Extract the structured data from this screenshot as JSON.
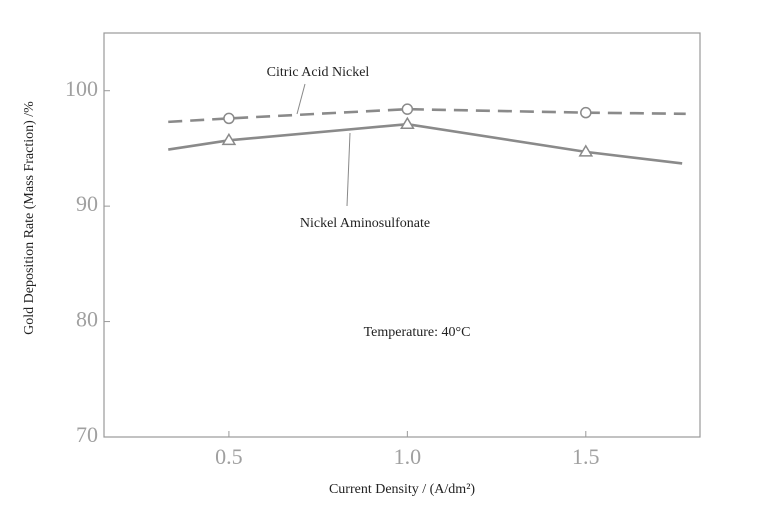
{
  "chart_data": {
    "type": "line",
    "x_label": "Current Density / (A/dm²)",
    "y_label": "Gold Deposition Rate (Mass Fraction) /%",
    "annotations": [
      "Citric Acid Nickel",
      "Nickel Aminosulfonate",
      "Temperature: 40°C"
    ],
    "xlim": [
      0.15,
      1.82
    ],
    "ylim": [
      70,
      105
    ],
    "xticks": [
      {
        "value": 0.5,
        "label": "0.5"
      },
      {
        "value": 1.0,
        "label": "1.0"
      },
      {
        "value": 1.5,
        "label": "1.5"
      }
    ],
    "yticks": [
      70,
      80,
      90,
      100
    ],
    "grid": false,
    "series": [
      {
        "name": "Citric Acid Nickel",
        "color": "#8a8a8a",
        "dash": true,
        "marker": "circle",
        "x": [
          0.33,
          0.5,
          1.0,
          1.5,
          1.78
        ],
        "values": [
          97.3,
          97.6,
          98.4,
          98.1,
          98.0
        ]
      },
      {
        "name": "Nickel Aminosulfonate",
        "color": "#8a8a8a",
        "dash": false,
        "marker": "triangle",
        "x": [
          0.33,
          0.5,
          1.0,
          1.5,
          1.77
        ],
        "values": [
          94.9,
          95.7,
          97.1,
          94.7,
          93.7
        ]
      }
    ]
  }
}
